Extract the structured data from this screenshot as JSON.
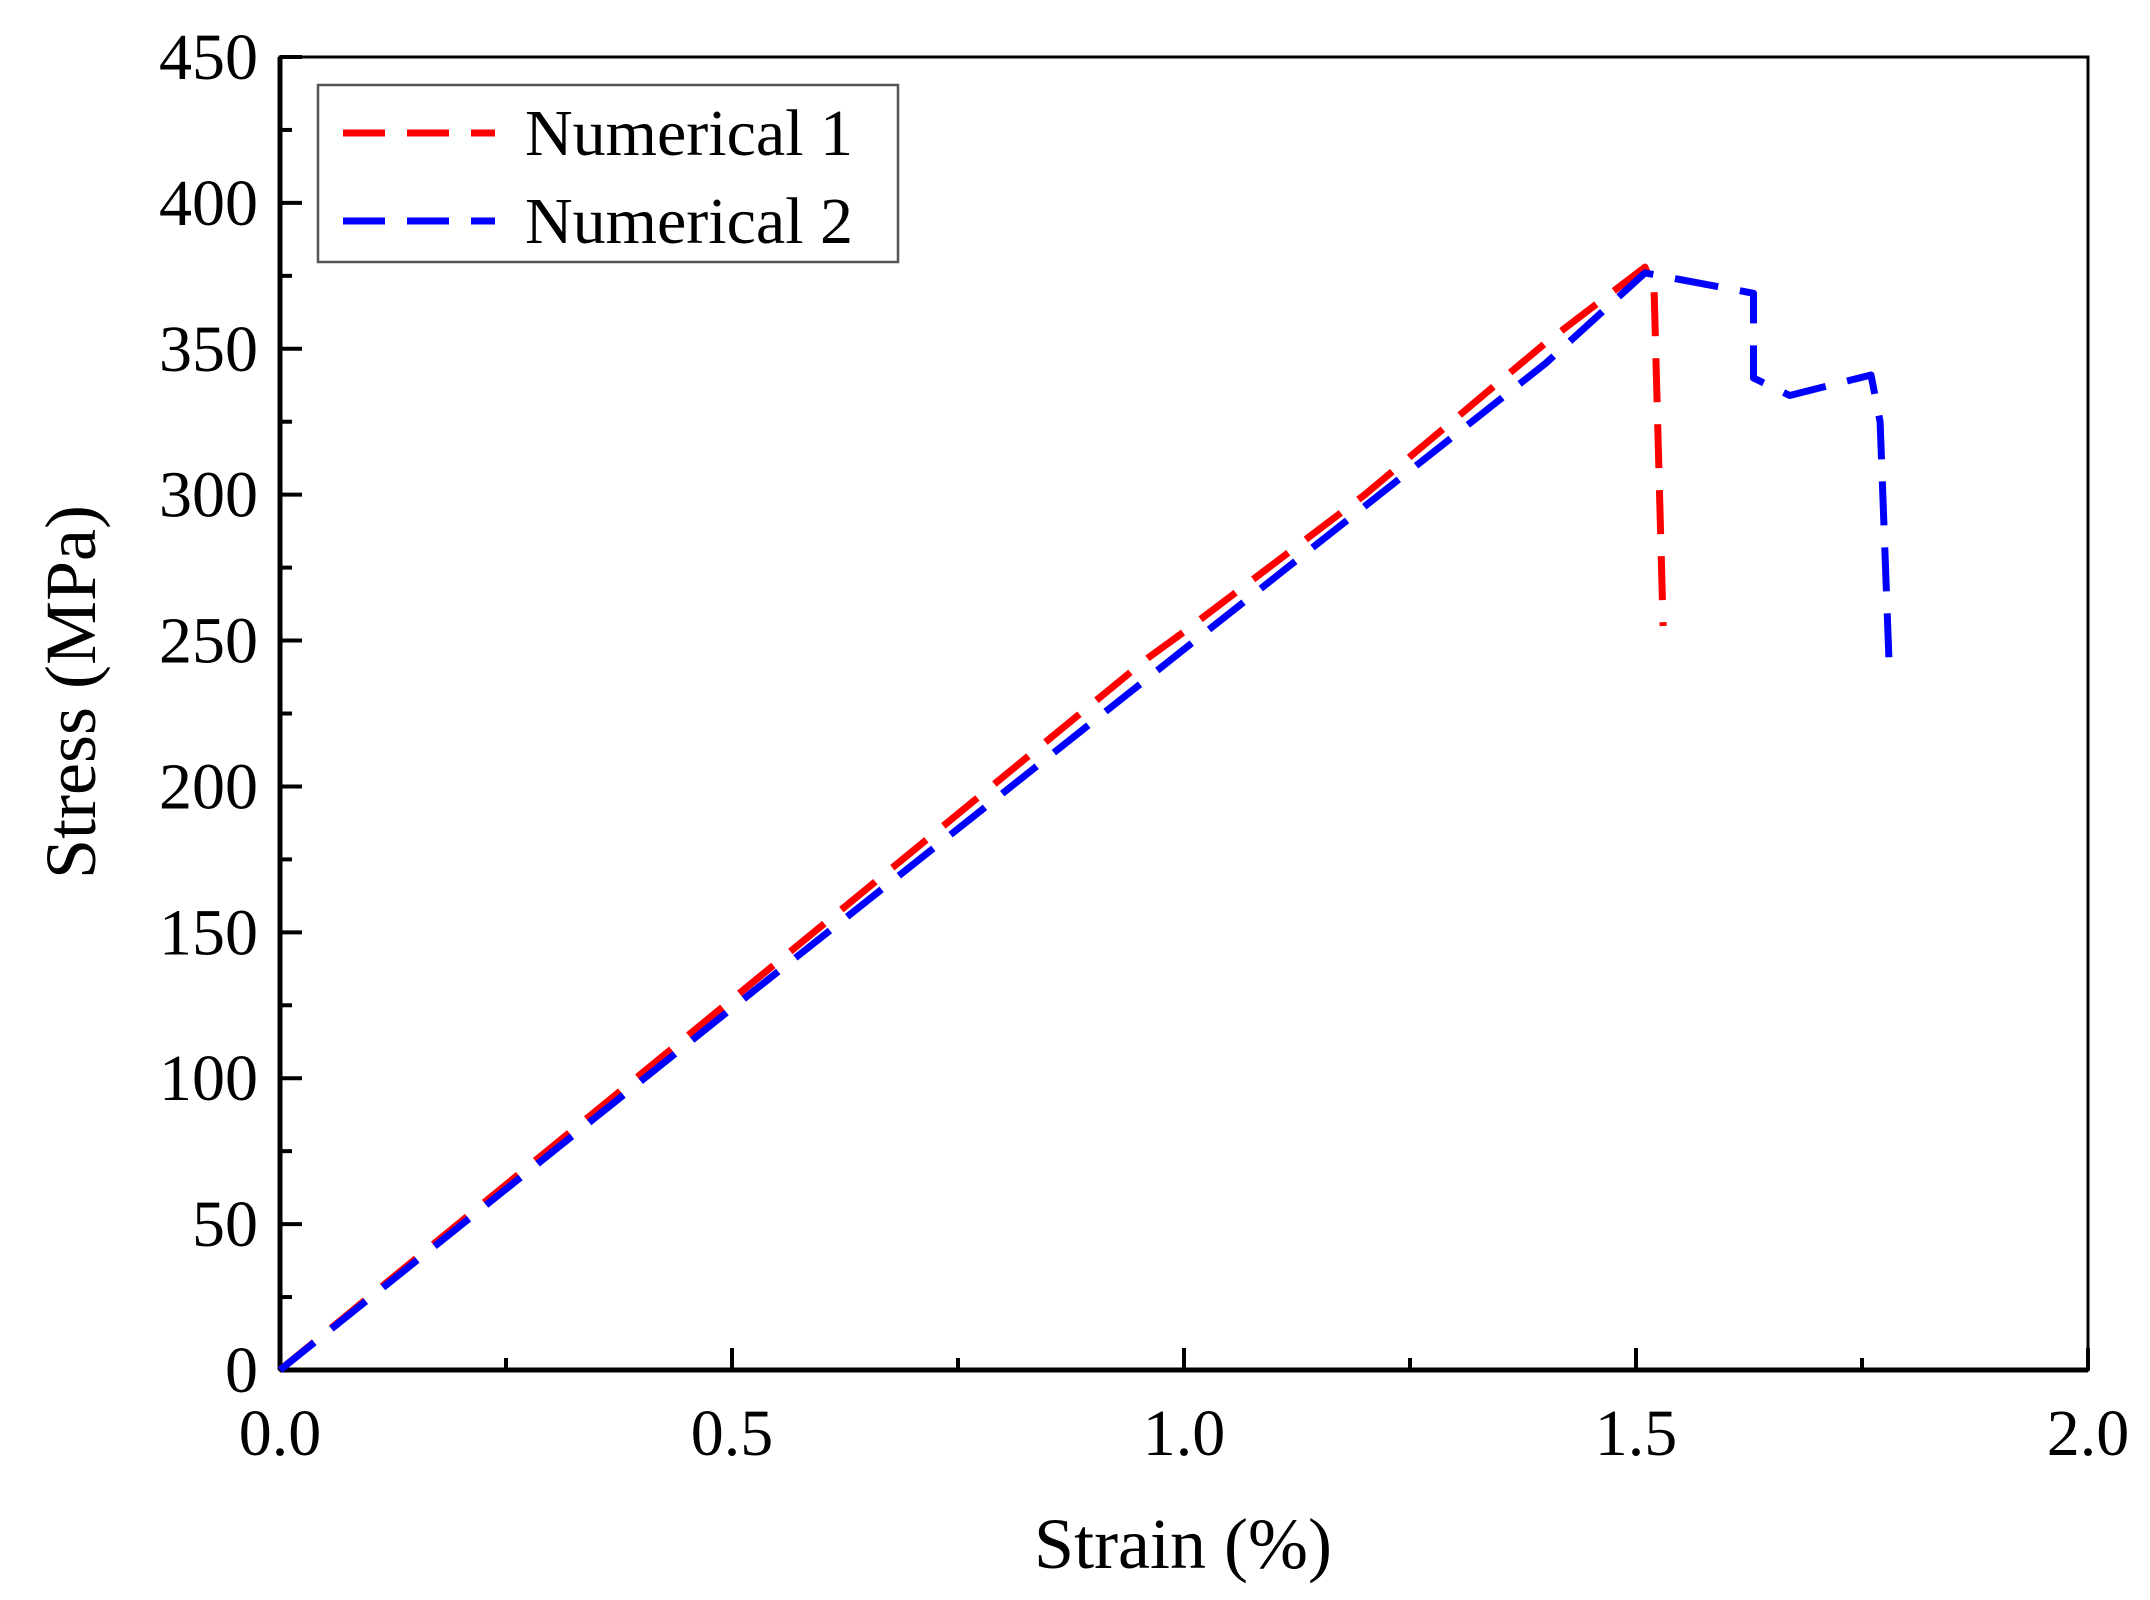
{
  "chart_data": {
    "type": "line",
    "title": "",
    "xlabel": "Strain (%)",
    "ylabel": "Stress (MPa)",
    "xlim": [
      0,
      2.0
    ],
    "ylim": [
      0,
      450
    ],
    "xticks": [
      0.0,
      0.5,
      1.0,
      1.5,
      2.0
    ],
    "xtick_labels": [
      "0.0",
      "0.5",
      "1.0",
      "1.5",
      "2.0"
    ],
    "yticks": [
      0,
      50,
      100,
      150,
      200,
      250,
      300,
      350,
      400,
      450
    ],
    "ytick_labels": [
      "0",
      "50",
      "100",
      "150",
      "200",
      "250",
      "300",
      "350",
      "400",
      "450"
    ],
    "grid": false,
    "legend_position": "top-left",
    "series": [
      {
        "name": "Numerical 1",
        "color": "#ff0000",
        "style": "dashed",
        "x": [
          0,
          0.5,
          0.96,
          1.0,
          1.2,
          1.4,
          1.51,
          1.52,
          1.53
        ],
        "y": [
          0,
          127,
          244,
          253,
          300,
          352,
          378,
          370,
          255
        ]
      },
      {
        "name": "Numerical 2",
        "color": "#0000ff",
        "style": "dashed",
        "x": [
          0,
          0.5,
          1.0,
          1.2,
          1.4,
          1.51,
          1.63,
          1.63,
          1.67,
          1.76,
          1.77,
          1.78
        ],
        "y": [
          0,
          124,
          247,
          296,
          345,
          376,
          369,
          340,
          334,
          341,
          325,
          242
        ]
      }
    ]
  }
}
